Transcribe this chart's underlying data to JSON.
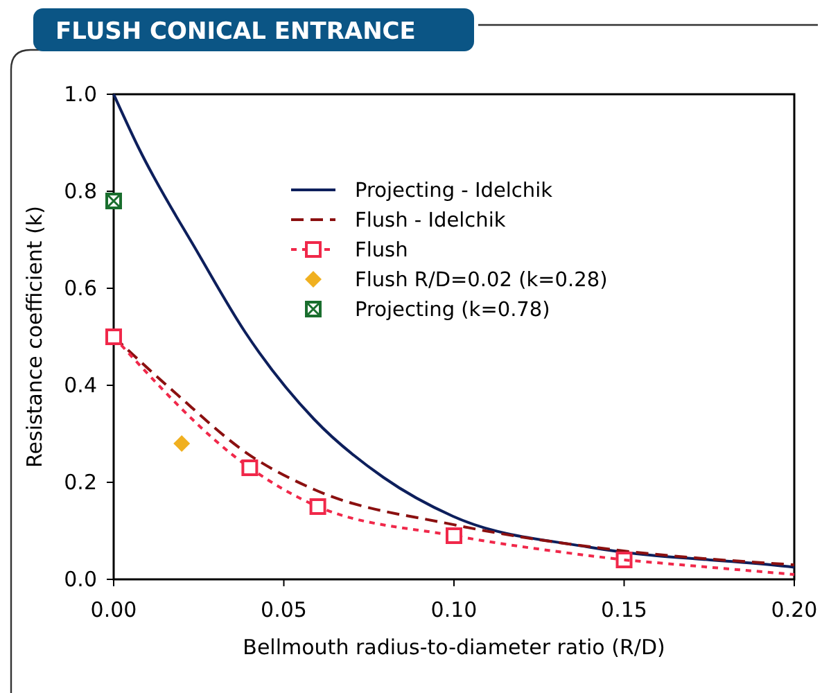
{
  "chart_data": {
    "type": "line",
    "title": "FLUSH CONICAL ENTRANCE",
    "xlabel": "Bellmouth radius-to-diameter ratio (R/D)",
    "ylabel": "Resistance coefficient (k)",
    "xlim": [
      0,
      0.2
    ],
    "ylim": [
      0,
      1.0
    ],
    "xticks": [
      {
        "value": 0,
        "label": "0.00"
      },
      0.05,
      {
        "value": 0.1,
        "label": "0.10"
      },
      0.15,
      {
        "value": 0.2,
        "label": "0.20"
      }
    ],
    "yticks": [
      {
        "value": 0,
        "label": "0.0"
      },
      0.2,
      0.4,
      0.6,
      0.8,
      {
        "value": 1,
        "label": "1.0"
      }
    ],
    "legend": "top right",
    "grid": false,
    "series": [
      {
        "name": "Projecting - Idelchik",
        "color": "#0d1f5c",
        "line_style": "solid",
        "marker": "none",
        "x": [
          0,
          0.0073,
          0.025,
          0.0386,
          0.0589,
          0.0793,
          0.0997,
          0.14,
          0.196,
          0.2
        ],
        "values": [
          1.0,
          0.89,
          0.67,
          0.51,
          0.33,
          0.21,
          0.13,
          0.066,
          0.028,
          0.025
        ]
      },
      {
        "name": "Flush - Idelchik",
        "color": "#8b1010",
        "line_style": "dashed",
        "marker": "none",
        "x": [
          0,
          0.018,
          0.04,
          0.059,
          0.0997,
          0.147,
          0.2
        ],
        "values": [
          0.5,
          0.385,
          0.256,
          0.185,
          0.113,
          0.061,
          0.03
        ]
      },
      {
        "name": "Flush",
        "color": "#f0284a",
        "line_style": "dotted",
        "marker": "square",
        "x": [
          0,
          0.04,
          0.06,
          0.1,
          0.15
        ],
        "values": [
          0.5,
          0.23,
          0.15,
          0.09,
          0.04
        ]
      },
      {
        "color": "#f0284a",
        "line_style": "dotted",
        "marker": "none",
        "x": [
          0.15,
          0.2
        ],
        "values": [
          0.04,
          0.01
        ]
      },
      {
        "name": "Flush R/D=0.02 (k=0.28)",
        "type": "scatter",
        "color": "#f0b020",
        "marker": "diamond",
        "x": [
          0.02
        ],
        "values": [
          0.28
        ]
      },
      {
        "name": "Projecting (k=0.78)",
        "type": "scatter",
        "color": "#1a6e2e",
        "marker": "square",
        "x": [
          0
        ],
        "values": [
          0.78
        ]
      }
    ]
  }
}
